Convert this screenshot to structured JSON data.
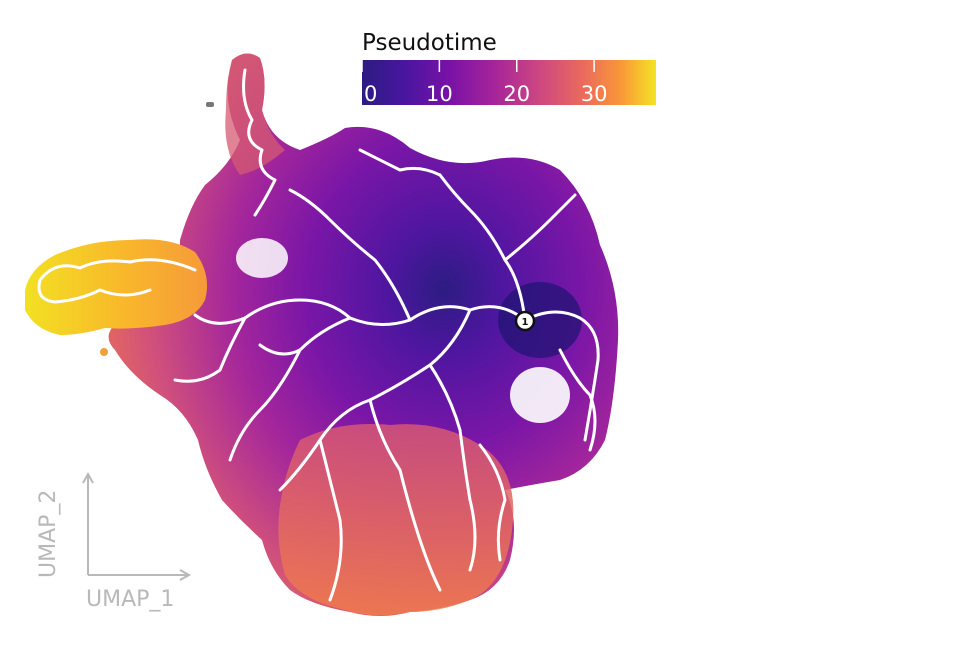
{
  "chart_data": {
    "type": "scatter",
    "title": "",
    "xlabel": "UMAP_1",
    "ylabel": "UMAP_2",
    "grid": false,
    "colorbar": {
      "title": "Pseudotime",
      "range": [
        0,
        38
      ],
      "ticks": [
        0,
        10,
        20,
        30
      ],
      "tick_labels": [
        "0",
        "10",
        "20",
        "30"
      ],
      "colormap": "plasma",
      "placement": "top-center"
    },
    "root_node": {
      "label": "1",
      "pseudotime": 0
    },
    "trajectory": {
      "color": "#ffffff",
      "description_visible": false
    },
    "colors": {
      "low": "#0d0887",
      "mid": "#b12a90",
      "high": "#f0f921",
      "trajectory": "#ffffff",
      "axis": "#b9b9b9"
    }
  }
}
